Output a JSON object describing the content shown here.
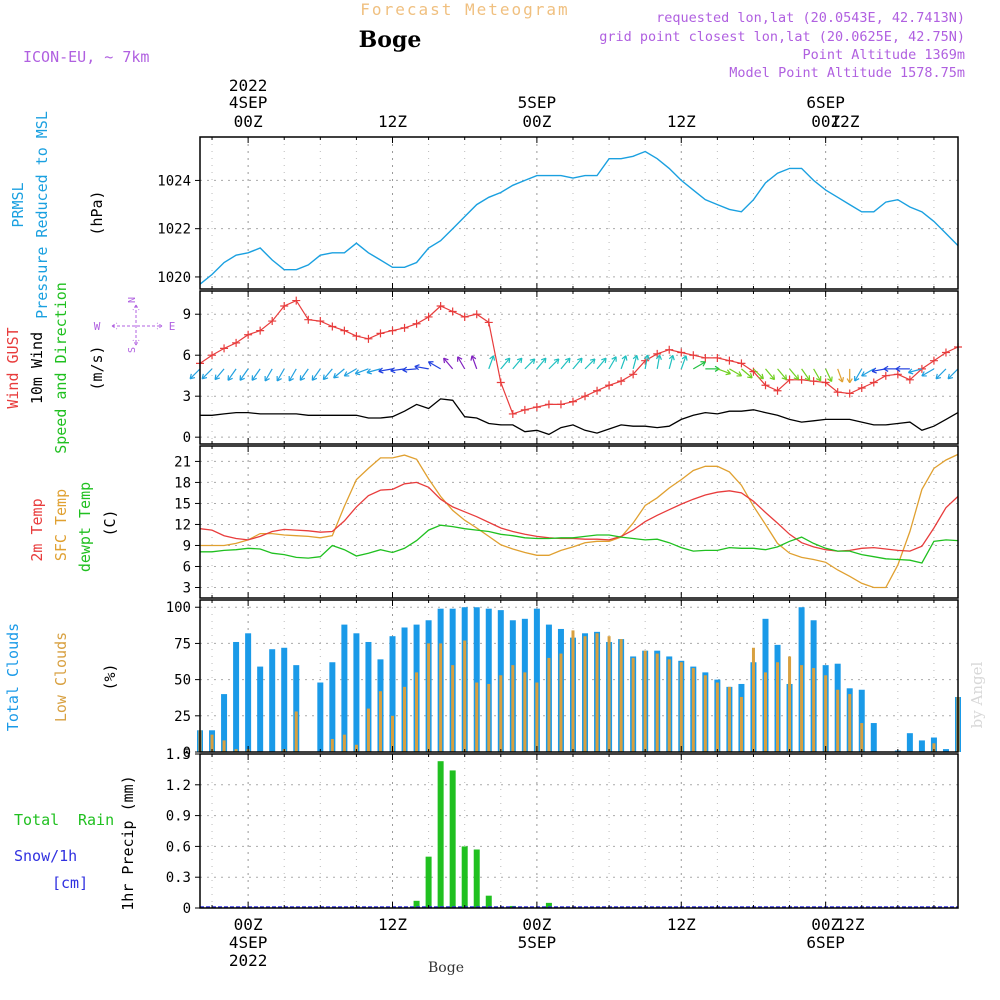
{
  "header": {
    "title": "Forecast Meteogram",
    "location": "Boge",
    "model": "ICON-EU, ~ 7km",
    "requested": "requested lon,lat (20.0543E, 42.7413N)",
    "gridpoint": "grid point closest lon,lat (20.0625E, 42.75N)",
    "point_alt": "Point Altitude 1369m",
    "model_alt": "Model Point Altitude 1578.75m",
    "footer_location": "Boge",
    "watermark": "by Angel"
  },
  "time_axis": {
    "top_dates": [
      {
        "date": "4SEP",
        "year": "2022",
        "hour": "00Z"
      },
      {
        "date": "",
        "year": "",
        "hour": "12Z"
      },
      {
        "date": "5SEP",
        "year": "",
        "hour": "00Z"
      },
      {
        "date": "",
        "year": "",
        "hour": "12Z"
      },
      {
        "date": "6SEP",
        "year": "",
        "hour": "00Z"
      },
      {
        "date": "",
        "year": "",
        "hour": "12Z"
      }
    ],
    "bottom_dates": [
      {
        "hour": "00Z",
        "date": "4SEP",
        "year": "2022"
      },
      {
        "hour": "12Z",
        "date": "",
        "year": ""
      },
      {
        "hour": "00Z",
        "date": "5SEP",
        "year": ""
      },
      {
        "hour": "12Z",
        "date": "",
        "year": ""
      },
      {
        "hour": "00Z",
        "date": "6SEP",
        "year": ""
      },
      {
        "hour": "12Z",
        "date": "",
        "year": ""
      }
    ],
    "start_hour": -4,
    "end_hour": 59
  },
  "panel_labels": {
    "pressure": [
      "PRMSL",
      "Pressure Reduced to MSL",
      "(hPa)"
    ],
    "wind": [
      "Wind GUST",
      "10m Wind",
      "Speed and Direction",
      "(m/s)"
    ],
    "compass": {
      "n": "N",
      "s": "S",
      "w": "W",
      "e": "E"
    },
    "temp": [
      "2m Temp",
      "SFC Temp",
      "dewpt Temp",
      "(C)"
    ],
    "clouds": [
      "Total Clouds",
      "Low Clouds",
      "(%)"
    ],
    "precip": [
      "Total",
      "Rain",
      "Snow/1h",
      "[cm]",
      "1hr Precip (mm)"
    ]
  },
  "colors": {
    "pressure": "#1aa0e0",
    "gust": "#e83c3c",
    "wind": "#000000",
    "t2m": "#e83c3c",
    "sfc": "#e0a030",
    "dewpt": "#20c020",
    "total_cloud": "#1a9ae8",
    "low_cloud": "#d8a040",
    "rain": "#20c020",
    "snow": "#3030e0",
    "label_purple": "#b060e0",
    "title_orange": "#f0c080"
  },
  "chart_data": [
    {
      "type": "line",
      "name": "pressure",
      "ylim": [
        1019.5,
        1025.8
      ],
      "yticks": [
        1020,
        1022,
        1024
      ],
      "x": [
        -4,
        -3,
        -2,
        -1,
        0,
        1,
        2,
        3,
        4,
        5,
        6,
        7,
        8,
        9,
        10,
        11,
        12,
        13,
        14,
        15,
        16,
        17,
        18,
        19,
        20,
        21,
        22,
        23,
        24,
        25,
        26,
        27,
        28,
        29,
        30,
        31,
        32,
        33,
        34,
        35,
        36,
        37,
        38,
        39,
        40,
        41,
        42,
        43,
        44,
        45,
        46,
        47,
        48,
        49,
        50,
        51,
        52,
        53,
        54,
        55,
        56,
        57,
        58,
        59
      ],
      "values": [
        1019.7,
        1020.1,
        1020.6,
        1020.9,
        1021.0,
        1021.2,
        1020.7,
        1020.3,
        1020.3,
        1020.5,
        1020.9,
        1021.0,
        1021.0,
        1021.4,
        1021.0,
        1020.7,
        1020.4,
        1020.4,
        1020.6,
        1021.2,
        1021.5,
        1022.0,
        1022.5,
        1023.0,
        1023.3,
        1023.5,
        1023.8,
        1024.0,
        1024.2,
        1024.2,
        1024.2,
        1024.1,
        1024.2,
        1024.2,
        1024.9,
        1024.9,
        1025.0,
        1025.2,
        1024.9,
        1024.5,
        1024.0,
        1023.6,
        1023.2,
        1023.0,
        1022.8,
        1022.7,
        1023.2,
        1023.9,
        1024.3,
        1024.5,
        1024.5,
        1024.0,
        1023.6,
        1023.3,
        1023.0,
        1022.7,
        1022.7,
        1023.1,
        1023.2,
        1022.9,
        1022.7,
        1022.3,
        1021.8,
        1021.3
      ]
    },
    {
      "type": "line",
      "name": "wind",
      "ylim": [
        -0.5,
        10.7
      ],
      "yticks": [
        0,
        3,
        6,
        9
      ],
      "x": [
        -4,
        -3,
        -2,
        -1,
        0,
        1,
        2,
        3,
        4,
        5,
        6,
        7,
        8,
        9,
        10,
        11,
        12,
        13,
        14,
        15,
        16,
        17,
        18,
        19,
        20,
        21,
        22,
        23,
        24,
        25,
        26,
        27,
        28,
        29,
        30,
        31,
        32,
        33,
        34,
        35,
        36,
        37,
        38,
        39,
        40,
        41,
        42,
        43,
        44,
        45,
        46,
        47,
        48,
        49,
        50,
        51,
        52,
        53,
        54,
        55,
        56,
        57,
        58,
        59
      ],
      "gust": [
        5.4,
        6.0,
        6.5,
        6.9,
        7.5,
        7.8,
        8.5,
        9.6,
        10.0,
        8.6,
        8.5,
        8.1,
        7.8,
        7.4,
        7.2,
        7.6,
        7.8,
        8.0,
        8.3,
        8.8,
        9.6,
        9.2,
        8.8,
        9.0,
        8.4,
        4.0,
        1.7,
        2.0,
        2.2,
        2.4,
        2.4,
        2.6,
        3.0,
        3.4,
        3.8,
        4.1,
        4.6,
        5.6,
        6.1,
        6.4,
        6.2,
        6.0,
        5.8,
        5.8,
        5.6,
        5.4,
        4.8,
        3.8,
        3.4,
        4.2,
        4.2,
        4.1,
        4.0,
        3.3,
        3.2,
        3.6,
        4.0,
        4.5,
        4.6,
        4.2,
        5.0,
        5.6,
        6.2,
        6.6
      ],
      "speed": [
        1.6,
        1.6,
        1.7,
        1.8,
        1.8,
        1.7,
        1.7,
        1.7,
        1.7,
        1.6,
        1.6,
        1.6,
        1.6,
        1.6,
        1.4,
        1.4,
        1.5,
        1.9,
        2.4,
        2.1,
        2.8,
        2.7,
        1.5,
        1.4,
        1.0,
        0.9,
        0.9,
        0.4,
        0.5,
        0.2,
        0.7,
        0.9,
        0.5,
        0.3,
        0.6,
        0.9,
        0.8,
        0.8,
        0.7,
        0.8,
        1.3,
        1.6,
        1.8,
        1.7,
        1.9,
        1.9,
        2.0,
        1.8,
        1.6,
        1.3,
        1.1,
        1.2,
        1.3,
        1.3,
        1.3,
        1.1,
        0.9,
        0.9,
        1.0,
        1.1,
        0.5,
        0.8,
        1.3,
        1.8
      ],
      "dir_deg": [
        225,
        225,
        220,
        215,
        215,
        215,
        210,
        210,
        210,
        215,
        215,
        220,
        230,
        240,
        250,
        255,
        260,
        262,
        265,
        280,
        300,
        320,
        330,
        340,
        20,
        40,
        40,
        45,
        40,
        45,
        40,
        40,
        45,
        40,
        30,
        20,
        15,
        10,
        10,
        15,
        20,
        60,
        90,
        110,
        120,
        130,
        135,
        140,
        140,
        140,
        145,
        150,
        155,
        160,
        180,
        210,
        240,
        260,
        270,
        270,
        255,
        240,
        225,
        225
      ]
    },
    {
      "type": "line",
      "name": "temperature",
      "ylim": [
        1.5,
        23.2
      ],
      "yticks": [
        3,
        6,
        9,
        12,
        15,
        18,
        21
      ],
      "x": [
        -4,
        -3,
        -2,
        -1,
        0,
        1,
        2,
        3,
        4,
        5,
        6,
        7,
        8,
        9,
        10,
        11,
        12,
        13,
        14,
        15,
        16,
        17,
        18,
        19,
        20,
        21,
        22,
        23,
        24,
        25,
        26,
        27,
        28,
        29,
        30,
        31,
        32,
        33,
        34,
        35,
        36,
        37,
        38,
        39,
        40,
        41,
        42,
        43,
        44,
        45,
        46,
        47,
        48,
        49,
        50,
        51,
        52,
        53,
        54,
        55,
        56,
        57,
        58,
        59
      ],
      "t2m": [
        11.4,
        11.2,
        10.4,
        10.0,
        9.8,
        10.3,
        11.0,
        11.3,
        11.2,
        11.1,
        10.9,
        11.0,
        12.5,
        14.5,
        16.1,
        16.9,
        17.0,
        17.8,
        18.0,
        17.3,
        15.6,
        14.5,
        13.8,
        13.1,
        12.3,
        11.5,
        11.0,
        10.6,
        10.3,
        10.1,
        10.0,
        10.0,
        9.9,
        9.9,
        9.8,
        10.3,
        11.2,
        12.4,
        13.3,
        14.1,
        14.9,
        15.6,
        16.2,
        16.6,
        16.8,
        16.5,
        15.3,
        13.7,
        12.2,
        10.6,
        9.4,
        8.8,
        8.4,
        8.2,
        8.3,
        8.6,
        8.7,
        8.5,
        8.3,
        8.2,
        8.9,
        11.5,
        14.4,
        16.0
      ],
      "sfc": [
        9.0,
        9.0,
        9.0,
        9.3,
        9.8,
        10.7,
        10.7,
        10.5,
        10.4,
        10.3,
        10.1,
        10.4,
        14.6,
        18.4,
        20.0,
        21.5,
        21.5,
        21.9,
        21.3,
        18.5,
        16.0,
        14.0,
        12.6,
        11.5,
        10.3,
        9.1,
        8.5,
        8.0,
        7.6,
        7.6,
        8.3,
        8.8,
        9.4,
        9.6,
        9.6,
        10.2,
        12.2,
        14.7,
        15.8,
        17.2,
        18.4,
        19.7,
        20.3,
        20.3,
        19.5,
        17.6,
        14.6,
        12.0,
        9.3,
        7.9,
        7.3,
        7.0,
        6.6,
        5.5,
        4.6,
        3.6,
        3.0,
        3.0,
        6.2,
        11.0,
        17.0,
        20.0,
        21.2,
        22.0
      ],
      "dewpt": [
        8.1,
        8.1,
        8.3,
        8.4,
        8.6,
        8.5,
        7.9,
        7.7,
        7.3,
        7.2,
        7.4,
        9.0,
        8.4,
        7.5,
        7.9,
        8.4,
        8.0,
        8.6,
        9.7,
        11.2,
        11.9,
        11.7,
        11.4,
        11.2,
        11.0,
        10.6,
        10.4,
        10.1,
        10.0,
        10.0,
        10.1,
        10.1,
        10.3,
        10.5,
        10.5,
        10.2,
        10.0,
        9.8,
        9.9,
        9.4,
        8.7,
        8.2,
        8.3,
        8.3,
        8.7,
        8.6,
        8.6,
        8.4,
        8.8,
        9.6,
        10.2,
        9.3,
        8.6,
        8.2,
        8.2,
        7.7,
        7.4,
        7.1,
        7.0,
        6.9,
        6.5,
        9.6,
        9.8,
        9.7
      ]
    },
    {
      "type": "bar",
      "name": "clouds",
      "ylim": [
        0,
        105
      ],
      "yticks": [
        0,
        25,
        50,
        75,
        100
      ],
      "x": [
        -4,
        -3,
        -2,
        -1,
        0,
        1,
        2,
        3,
        4,
        5,
        6,
        7,
        8,
        9,
        10,
        11,
        12,
        13,
        14,
        15,
        16,
        17,
        18,
        19,
        20,
        21,
        22,
        23,
        24,
        25,
        26,
        27,
        28,
        29,
        30,
        31,
        32,
        33,
        34,
        35,
        36,
        37,
        38,
        39,
        40,
        41,
        42,
        43,
        44,
        45,
        46,
        47,
        48,
        49,
        50,
        51,
        52,
        53,
        54,
        55,
        56,
        57,
        58,
        59
      ],
      "total": [
        15,
        15,
        40,
        76,
        82,
        59,
        71,
        72,
        60,
        0,
        48,
        62,
        88,
        82,
        76,
        64,
        80,
        86,
        88,
        91,
        99,
        99,
        100,
        100,
        99,
        98,
        91,
        92,
        99,
        88,
        85,
        79,
        82,
        83,
        76,
        78,
        66,
        70,
        70,
        66,
        63,
        59,
        55,
        50,
        45,
        47,
        62,
        92,
        74,
        47,
        100,
        91,
        60,
        61,
        44,
        43,
        20,
        0,
        1,
        13,
        8,
        10,
        2,
        38
      ],
      "low": [
        15,
        12,
        8,
        2,
        2,
        0,
        0,
        2,
        28,
        0,
        0,
        9,
        12,
        5,
        30,
        42,
        25,
        45,
        55,
        75,
        75,
        60,
        77,
        48,
        47,
        53,
        60,
        55,
        48,
        65,
        68,
        84,
        80,
        82,
        80,
        78,
        65,
        70,
        68,
        64,
        62,
        58,
        53,
        48,
        45,
        38,
        72,
        55,
        62,
        66,
        60,
        58,
        53,
        43,
        40,
        20,
        0,
        0,
        0,
        0,
        0,
        6,
        0,
        38
      ]
    },
    {
      "type": "bar",
      "name": "precip",
      "ylim": [
        0,
        1.5
      ],
      "yticks": [
        0,
        0.3,
        0.6,
        0.9,
        1.2,
        1.5
      ],
      "x": [
        14,
        15,
        16,
        17,
        18,
        19,
        20,
        21,
        22,
        25
      ],
      "values": [
        0.07,
        0.5,
        1.43,
        1.34,
        0.6,
        0.57,
        0.12,
        0.0,
        0.02,
        0.05
      ]
    }
  ]
}
